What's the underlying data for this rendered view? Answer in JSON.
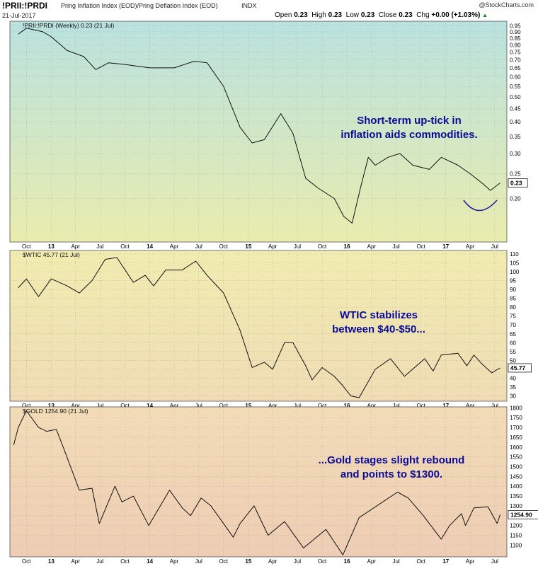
{
  "header": {
    "symbol": "!PRII:!PRDI",
    "description": "Pring Inflation Index (EOD)/Pring Deflation Index (EOD)",
    "index_tag": "INDX",
    "date": "21-Jul-2017",
    "brand": "@StockCharts.com",
    "open_label": "Open",
    "open": "0.23",
    "high_label": "High",
    "high": "0.23",
    "low_label": "Low",
    "low": "0.23",
    "close_label": "Close",
    "close": "0.23",
    "chg_label": "Chg",
    "chg": "+0.00 (+1.03%)",
    "chg_arrow": "▲"
  },
  "colors": {
    "panel1_top": "#b9e2df",
    "panel1_bottom": "#e9ecae",
    "panel2_top": "#f1ecb0",
    "panel2_bottom": "#f0dcb4",
    "panel3_top": "#f2dcb6",
    "panel3_bottom": "#eecdb4",
    "line": "#111111",
    "annotation": "#0b0b9a",
    "arc": "#22229a"
  },
  "x_axis_labels": [
    "Oct",
    "13",
    "Apr",
    "Jul",
    "Oct",
    "14",
    "Apr",
    "Jul",
    "Oct",
    "15",
    "Apr",
    "Jul",
    "Oct",
    "16",
    "Apr",
    "Jul",
    "Oct",
    "17",
    "Apr",
    "Jul"
  ],
  "chart_data": [
    {
      "type": "line",
      "title": "!PRII:!PRDI (Weekly) 0.23 (21 Jul)",
      "series": [
        {
          "name": "!PRII:!PRDI",
          "points": [
            [
              "2012-09-01",
              0.88
            ],
            [
              "2012-10-01",
              0.93
            ],
            [
              "2012-12-01",
              0.9
            ],
            [
              "2013-01-01",
              0.86
            ],
            [
              "2013-03-01",
              0.76
            ],
            [
              "2013-05-01",
              0.72
            ],
            [
              "2013-06-15",
              0.64
            ],
            [
              "2013-08-01",
              0.68
            ],
            [
              "2013-10-01",
              0.67
            ],
            [
              "2014-01-01",
              0.65
            ],
            [
              "2014-04-01",
              0.65
            ],
            [
              "2014-06-15",
              0.69
            ],
            [
              "2014-08-01",
              0.68
            ],
            [
              "2014-10-01",
              0.55
            ],
            [
              "2014-12-01",
              0.38
            ],
            [
              "2015-01-15",
              0.33
            ],
            [
              "2015-03-01",
              0.34
            ],
            [
              "2015-05-01",
              0.43
            ],
            [
              "2015-06-15",
              0.36
            ],
            [
              "2015-08-01",
              0.24
            ],
            [
              "2015-09-15",
              0.22
            ],
            [
              "2015-11-15",
              0.2
            ],
            [
              "2015-12-20",
              0.17
            ],
            [
              "2016-01-20",
              0.16
            ],
            [
              "2016-02-20",
              0.22
            ],
            [
              "2016-03-20",
              0.29
            ],
            [
              "2016-04-15",
              0.27
            ],
            [
              "2016-06-01",
              0.29
            ],
            [
              "2016-07-15",
              0.3
            ],
            [
              "2016-09-01",
              0.27
            ],
            [
              "2016-11-01",
              0.26
            ],
            [
              "2016-12-15",
              0.29
            ],
            [
              "2017-02-15",
              0.27
            ],
            [
              "2017-04-01",
              0.25
            ],
            [
              "2017-05-15",
              0.23
            ],
            [
              "2017-06-15",
              0.215
            ],
            [
              "2017-07-21",
              0.23
            ]
          ]
        }
      ],
      "y_ticks": [
        0.95,
        0.9,
        0.85,
        0.8,
        0.75,
        0.7,
        0.65,
        0.6,
        0.55,
        0.5,
        0.45,
        0.4,
        0.35,
        0.3,
        0.25,
        0.2
      ],
      "y_scale": "log",
      "last_value_label": "0.23",
      "annotation": "Short-term up-tick in\ninflation aids commodities."
    },
    {
      "type": "line",
      "title": "$WTIC 45.77 (21 Jul)",
      "series": [
        {
          "name": "$WTIC",
          "points": [
            [
              "2012-09-01",
              91
            ],
            [
              "2012-10-01",
              96
            ],
            [
              "2012-11-15",
              86
            ],
            [
              "2013-01-01",
              96
            ],
            [
              "2013-03-01",
              92
            ],
            [
              "2013-04-15",
              88
            ],
            [
              "2013-06-01",
              95
            ],
            [
              "2013-07-20",
              107
            ],
            [
              "2013-09-01",
              108
            ],
            [
              "2013-11-01",
              94
            ],
            [
              "2013-12-15",
              98
            ],
            [
              "2014-01-15",
              92
            ],
            [
              "2014-03-01",
              101
            ],
            [
              "2014-05-01",
              101
            ],
            [
              "2014-06-20",
              106
            ],
            [
              "2014-08-01",
              98
            ],
            [
              "2014-10-01",
              88
            ],
            [
              "2014-12-01",
              67
            ],
            [
              "2015-01-15",
              46
            ],
            [
              "2015-03-01",
              49
            ],
            [
              "2015-04-01",
              45
            ],
            [
              "2015-05-15",
              60
            ],
            [
              "2015-06-15",
              60
            ],
            [
              "2015-08-01",
              47
            ],
            [
              "2015-08-25",
              39
            ],
            [
              "2015-10-01",
              46
            ],
            [
              "2015-11-15",
              41
            ],
            [
              "2015-12-15",
              36
            ],
            [
              "2016-01-15",
              30
            ],
            [
              "2016-02-15",
              29
            ],
            [
              "2016-04-15",
              45
            ],
            [
              "2016-06-10",
              51
            ],
            [
              "2016-08-01",
              41
            ],
            [
              "2016-10-15",
              51
            ],
            [
              "2016-11-15",
              44
            ],
            [
              "2016-12-15",
              53
            ],
            [
              "2017-02-15",
              54
            ],
            [
              "2017-03-20",
              47
            ],
            [
              "2017-04-15",
              53
            ],
            [
              "2017-05-15",
              48
            ],
            [
              "2017-06-20",
              43
            ],
            [
              "2017-07-21",
              45.77
            ]
          ]
        }
      ],
      "y_ticks": [
        110,
        105,
        100,
        95,
        90,
        85,
        80,
        75,
        70,
        65,
        60,
        55,
        50,
        45,
        40,
        35,
        30
      ],
      "last_value_label": "45.77",
      "annotation": "WTIC stabilizes\nbetween $40-$50..."
    },
    {
      "type": "line",
      "title": "$GOLD 1254.90 (21 Jul)",
      "series": [
        {
          "name": "$GOLD",
          "points": [
            [
              "2012-08-15",
              1610
            ],
            [
              "2012-09-01",
              1700
            ],
            [
              "2012-10-01",
              1785
            ],
            [
              "2012-11-15",
              1700
            ],
            [
              "2012-12-15",
              1680
            ],
            [
              "2013-01-20",
              1690
            ],
            [
              "2013-02-20",
              1580
            ],
            [
              "2013-04-15",
              1380
            ],
            [
              "2013-06-01",
              1390
            ],
            [
              "2013-06-28",
              1210
            ],
            [
              "2013-08-25",
              1400
            ],
            [
              "2013-09-20",
              1320
            ],
            [
              "2013-11-01",
              1350
            ],
            [
              "2013-12-28",
              1200
            ],
            [
              "2014-03-15",
              1380
            ],
            [
              "2014-05-01",
              1290
            ],
            [
              "2014-06-01",
              1250
            ],
            [
              "2014-07-10",
              1340
            ],
            [
              "2014-08-15",
              1300
            ],
            [
              "2014-10-01",
              1210
            ],
            [
              "2014-11-06",
              1140
            ],
            [
              "2014-12-01",
              1210
            ],
            [
              "2015-01-22",
              1300
            ],
            [
              "2015-03-15",
              1150
            ],
            [
              "2015-05-15",
              1220
            ],
            [
              "2015-07-24",
              1085
            ],
            [
              "2015-10-15",
              1180
            ],
            [
              "2015-12-17",
              1050
            ],
            [
              "2016-02-15",
              1240
            ],
            [
              "2016-07-06",
              1370
            ],
            [
              "2016-08-15",
              1340
            ],
            [
              "2016-10-07",
              1255
            ],
            [
              "2016-12-15",
              1130
            ],
            [
              "2017-01-15",
              1200
            ],
            [
              "2017-02-28",
              1260
            ],
            [
              "2017-03-15",
              1200
            ],
            [
              "2017-04-15",
              1290
            ],
            [
              "2017-06-06",
              1295
            ],
            [
              "2017-07-10",
              1210
            ],
            [
              "2017-07-21",
              1254.9
            ]
          ]
        }
      ],
      "y_ticks": [
        1800,
        1750,
        1700,
        1650,
        1600,
        1550,
        1500,
        1450,
        1400,
        1350,
        1300,
        1250,
        1200,
        1150,
        1100
      ],
      "last_value_label": "1254.90",
      "annotation": "...Gold stages slight rebound\nand points to $1300."
    }
  ]
}
